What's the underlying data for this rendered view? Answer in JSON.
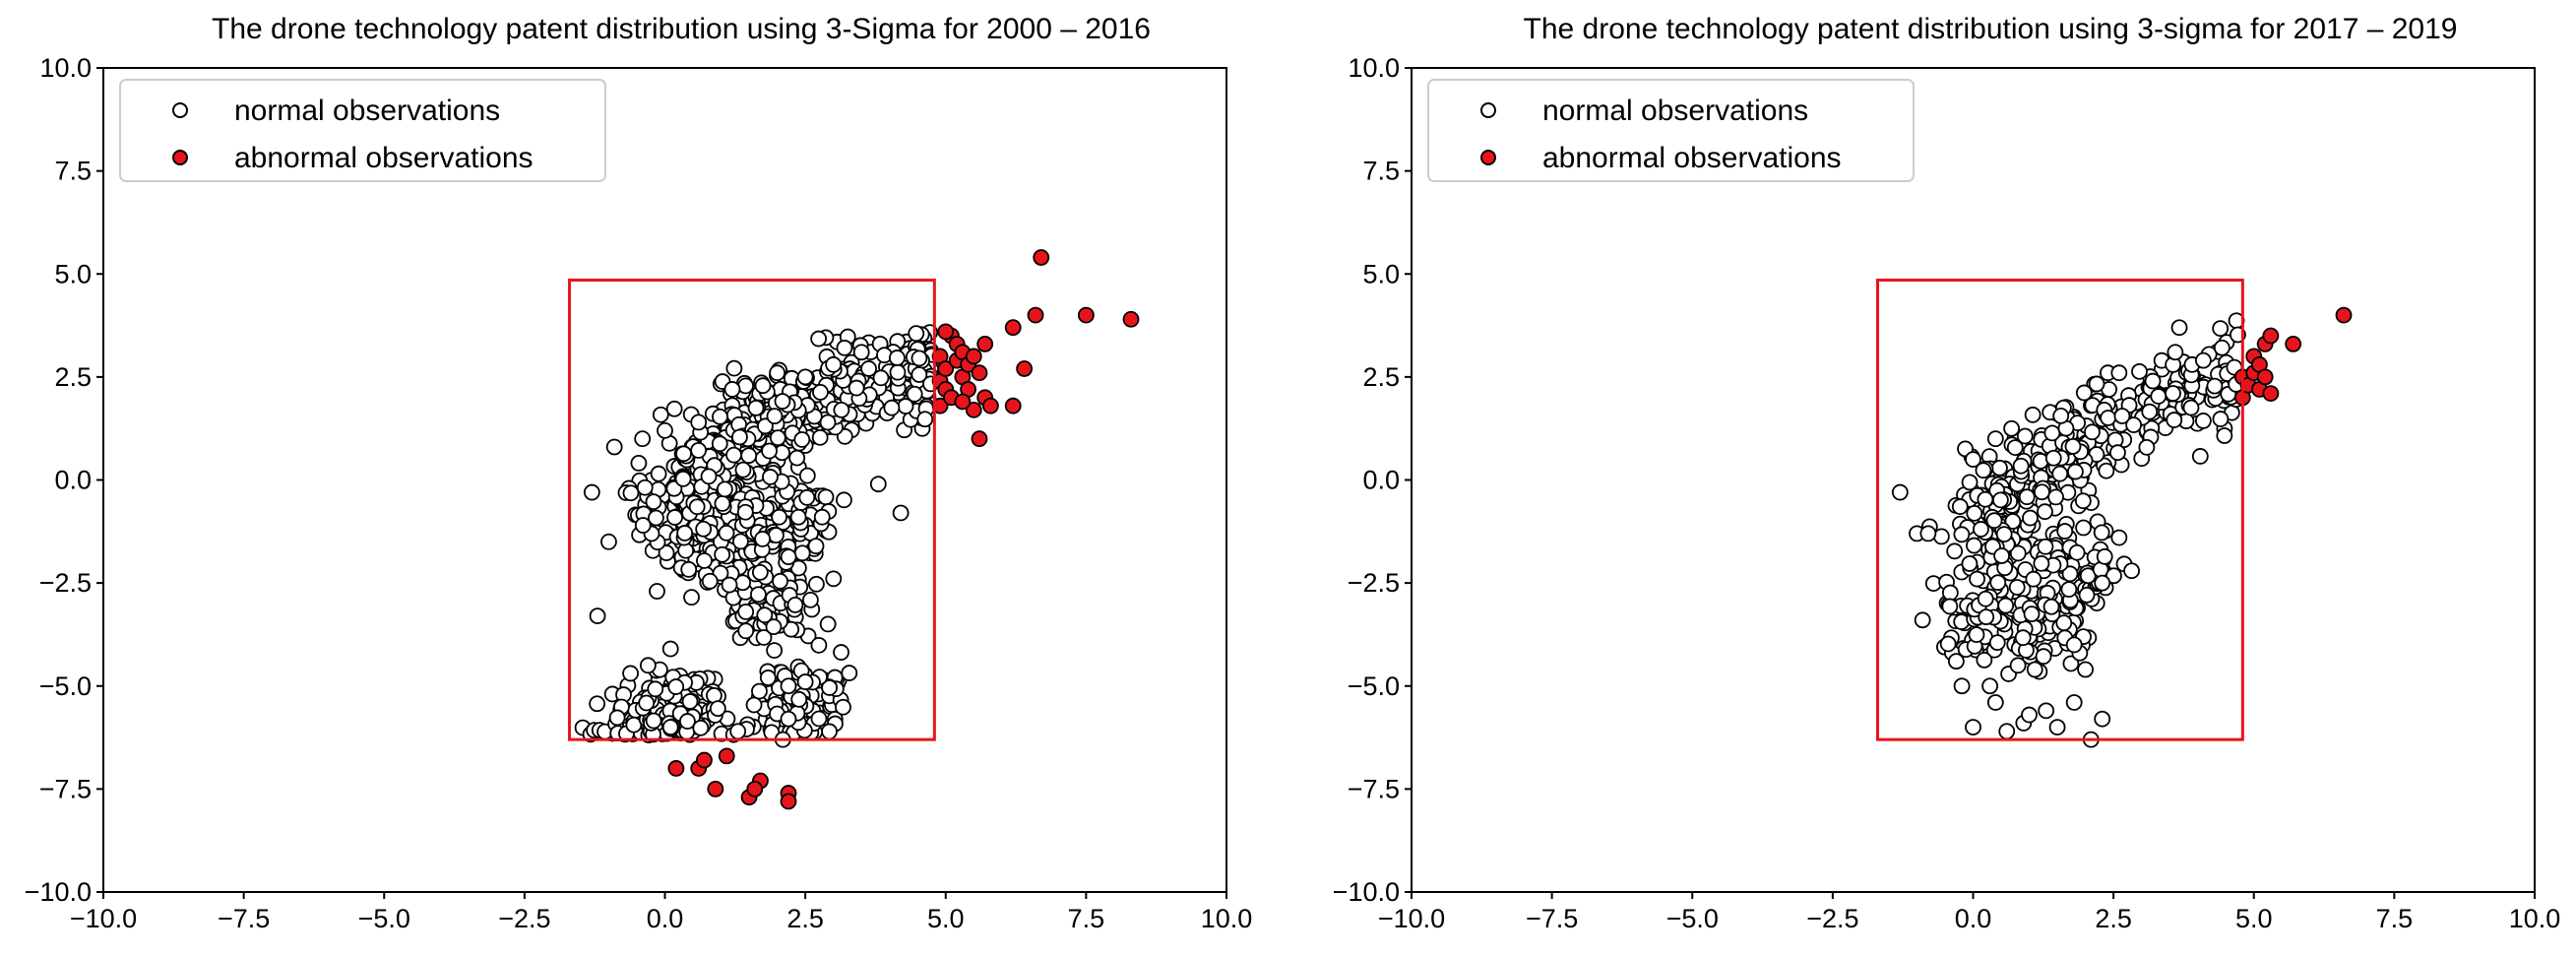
{
  "chart_data": [
    {
      "type": "scatter",
      "title": "The drone technology patent distribution using 3-Sigma for 2000 – 2016",
      "xlim": [
        -10,
        10
      ],
      "ylim": [
        -10,
        10
      ],
      "xticks": [
        "−10.0",
        "−7.5",
        "−5.0",
        "−2.5",
        "0.0",
        "2.5",
        "5.0",
        "7.5",
        "10.0"
      ],
      "yticks": [
        "10.0",
        "7.5",
        "5.0",
        "2.5",
        "0.0",
        "−2.5",
        "−5.0",
        "−7.5",
        "−10.0"
      ],
      "grid": false,
      "legend_position": "top-left",
      "three_sigma_box": {
        "x": [
          -1.7,
          4.8
        ],
        "y": [
          -6.3,
          4.85
        ],
        "color": "#e8141c"
      },
      "series": [
        {
          "name": "normal observations",
          "marker": "circle-hollow",
          "color": "#ffffff",
          "edge": "#000000",
          "cluster": {
            "count": 1150,
            "core": [
              [
                -0.3,
                -6.1
              ],
              [
                0.4,
                -5.6
              ],
              [
                0.8,
                -1.5
              ],
              [
                0.3,
                -0.5
              ],
              [
                1.0,
                0.5
              ],
              [
                2.0,
                1.5
              ],
              [
                3.2,
                2.2
              ],
              [
                4.6,
                2.6
              ],
              [
                2.3,
                -5.4
              ],
              [
                1.8,
                -3.0
              ],
              [
                2.0,
                -1.0
              ]
            ],
            "spread": 0.45
          },
          "points": [
            [
              -1.3,
              -0.3
            ],
            [
              -0.9,
              0.8
            ],
            [
              -1.2,
              -3.3
            ],
            [
              -1.0,
              -1.5
            ],
            [
              -0.4,
              1.0
            ],
            [
              0.0,
              1.2
            ],
            [
              0.6,
              1.4
            ],
            [
              1.2,
              2.2
            ],
            [
              2.0,
              2.6
            ],
            [
              2.5,
              2.5
            ],
            [
              3.0,
              2.8
            ],
            [
              3.5,
              3.1
            ],
            [
              4.2,
              -0.8
            ],
            [
              3.8,
              -0.1
            ],
            [
              2.8,
              -0.9
            ],
            [
              2.2,
              -5.0
            ],
            [
              2.5,
              -4.9
            ],
            [
              2.2,
              -5.8
            ],
            [
              1.3,
              -6.1
            ],
            [
              0.1,
              -6.0
            ],
            [
              -0.3,
              -4.5
            ],
            [
              0.1,
              -4.1
            ],
            [
              2.1,
              -6.3
            ]
          ]
        },
        {
          "name": "abnormal observations",
          "marker": "circle",
          "color": "#e8141c",
          "edge": "#000000",
          "points": [
            [
              0.2,
              -7.0
            ],
            [
              0.6,
              -7.0
            ],
            [
              0.7,
              -6.8
            ],
            [
              1.1,
              -6.7
            ],
            [
              0.9,
              -7.5
            ],
            [
              1.5,
              -7.7
            ],
            [
              1.7,
              -7.3
            ],
            [
              1.6,
              -7.5
            ],
            [
              2.2,
              -7.6
            ],
            [
              2.2,
              -7.8
            ],
            [
              4.9,
              1.8
            ],
            [
              4.9,
              2.4
            ],
            [
              4.9,
              3.0
            ],
            [
              5.0,
              2.2
            ],
            [
              5.0,
              2.7
            ],
            [
              5.1,
              3.5
            ],
            [
              5.1,
              2.0
            ],
            [
              5.2,
              2.9
            ],
            [
              5.2,
              3.3
            ],
            [
              5.3,
              2.5
            ],
            [
              5.3,
              3.1
            ],
            [
              5.4,
              2.2
            ],
            [
              5.4,
              2.8
            ],
            [
              5.5,
              3.0
            ],
            [
              5.5,
              1.7
            ],
            [
              5.6,
              2.6
            ],
            [
              5.6,
              1.0
            ],
            [
              5.7,
              2.0
            ],
            [
              5.7,
              3.3
            ],
            [
              5.8,
              1.8
            ],
            [
              5.0,
              3.6
            ],
            [
              5.3,
              1.9
            ],
            [
              6.2,
              3.7
            ],
            [
              6.2,
              1.8
            ],
            [
              6.4,
              2.7
            ],
            [
              6.6,
              4.0
            ],
            [
              6.7,
              5.4
            ],
            [
              7.5,
              4.0
            ],
            [
              8.3,
              3.9
            ]
          ]
        }
      ]
    },
    {
      "type": "scatter",
      "title": "The drone technology patent distribution using 3-sigma for 2017 – 2019",
      "xlim": [
        -10,
        10
      ],
      "ylim": [
        -10,
        10
      ],
      "xticks": [
        "−10.0",
        "−7.5",
        "−5.0",
        "−2.5",
        "0.0",
        "2.5",
        "5.0",
        "7.5",
        "10.0"
      ],
      "yticks": [
        "10.0",
        "7.5",
        "5.0",
        "2.5",
        "0.0",
        "−2.5",
        "−5.0",
        "−7.5",
        "−10.0"
      ],
      "grid": false,
      "legend_position": "top-left",
      "three_sigma_box": {
        "x": [
          -1.7,
          4.8
        ],
        "y": [
          -6.3,
          4.85
        ],
        "color": "#e8141c"
      },
      "series": [
        {
          "name": "normal observations",
          "marker": "circle-hollow",
          "color": "#ffffff",
          "edge": "#000000",
          "cluster": {
            "count": 560,
            "core": [
              [
                0.2,
                -3.5
              ],
              [
                0.5,
                -1.5
              ],
              [
                0.6,
                -0.3
              ],
              [
                1.3,
                0.4
              ],
              [
                2.2,
                1.3
              ],
              [
                3.4,
                2.0
              ],
              [
                4.4,
                2.5
              ],
              [
                1.4,
                -3.5
              ],
              [
                1.8,
                -2.0
              ]
            ],
            "spread": 0.42
          },
          "points": [
            [
              -1.3,
              -0.3
            ],
            [
              -1.0,
              -1.3
            ],
            [
              -0.8,
              -1.3
            ],
            [
              -0.9,
              -3.4
            ],
            [
              -0.3,
              -4.4
            ],
            [
              -0.2,
              -5.0
            ],
            [
              0.0,
              -6.0
            ],
            [
              0.3,
              -5.0
            ],
            [
              0.4,
              -5.4
            ],
            [
              0.6,
              -6.1
            ],
            [
              0.9,
              -5.9
            ],
            [
              1.0,
              -5.7
            ],
            [
              1.3,
              -5.6
            ],
            [
              1.5,
              -6.0
            ],
            [
              1.8,
              -5.4
            ],
            [
              2.1,
              -6.3
            ],
            [
              2.3,
              -5.8
            ],
            [
              0.8,
              -4.5
            ],
            [
              1.1,
              -4.6
            ],
            [
              1.9,
              -4.2
            ],
            [
              2.0,
              -4.6
            ],
            [
              2.3,
              -2.5
            ],
            [
              2.6,
              -1.4
            ],
            [
              2.4,
              2.6
            ],
            [
              2.6,
              2.6
            ],
            [
              3.2,
              2.4
            ],
            [
              3.6,
              3.1
            ],
            [
              3.9,
              2.8
            ],
            [
              4.1,
              2.9
            ],
            [
              1.8,
              -4.0
            ],
            [
              0.0,
              0.5
            ],
            [
              0.4,
              1.0
            ]
          ]
        },
        {
          "name": "abnormal observations",
          "marker": "circle",
          "color": "#e8141c",
          "edge": "#000000",
          "points": [
            [
              4.8,
              2.0
            ],
            [
              4.8,
              2.5
            ],
            [
              4.9,
              2.3
            ],
            [
              5.0,
              2.6
            ],
            [
              5.0,
              3.0
            ],
            [
              5.1,
              2.2
            ],
            [
              5.1,
              2.8
            ],
            [
              5.2,
              3.3
            ],
            [
              5.2,
              2.5
            ],
            [
              5.3,
              3.5
            ],
            [
              5.3,
              2.1
            ],
            [
              5.7,
              3.3
            ],
            [
              6.6,
              4.0
            ]
          ]
        }
      ]
    }
  ]
}
